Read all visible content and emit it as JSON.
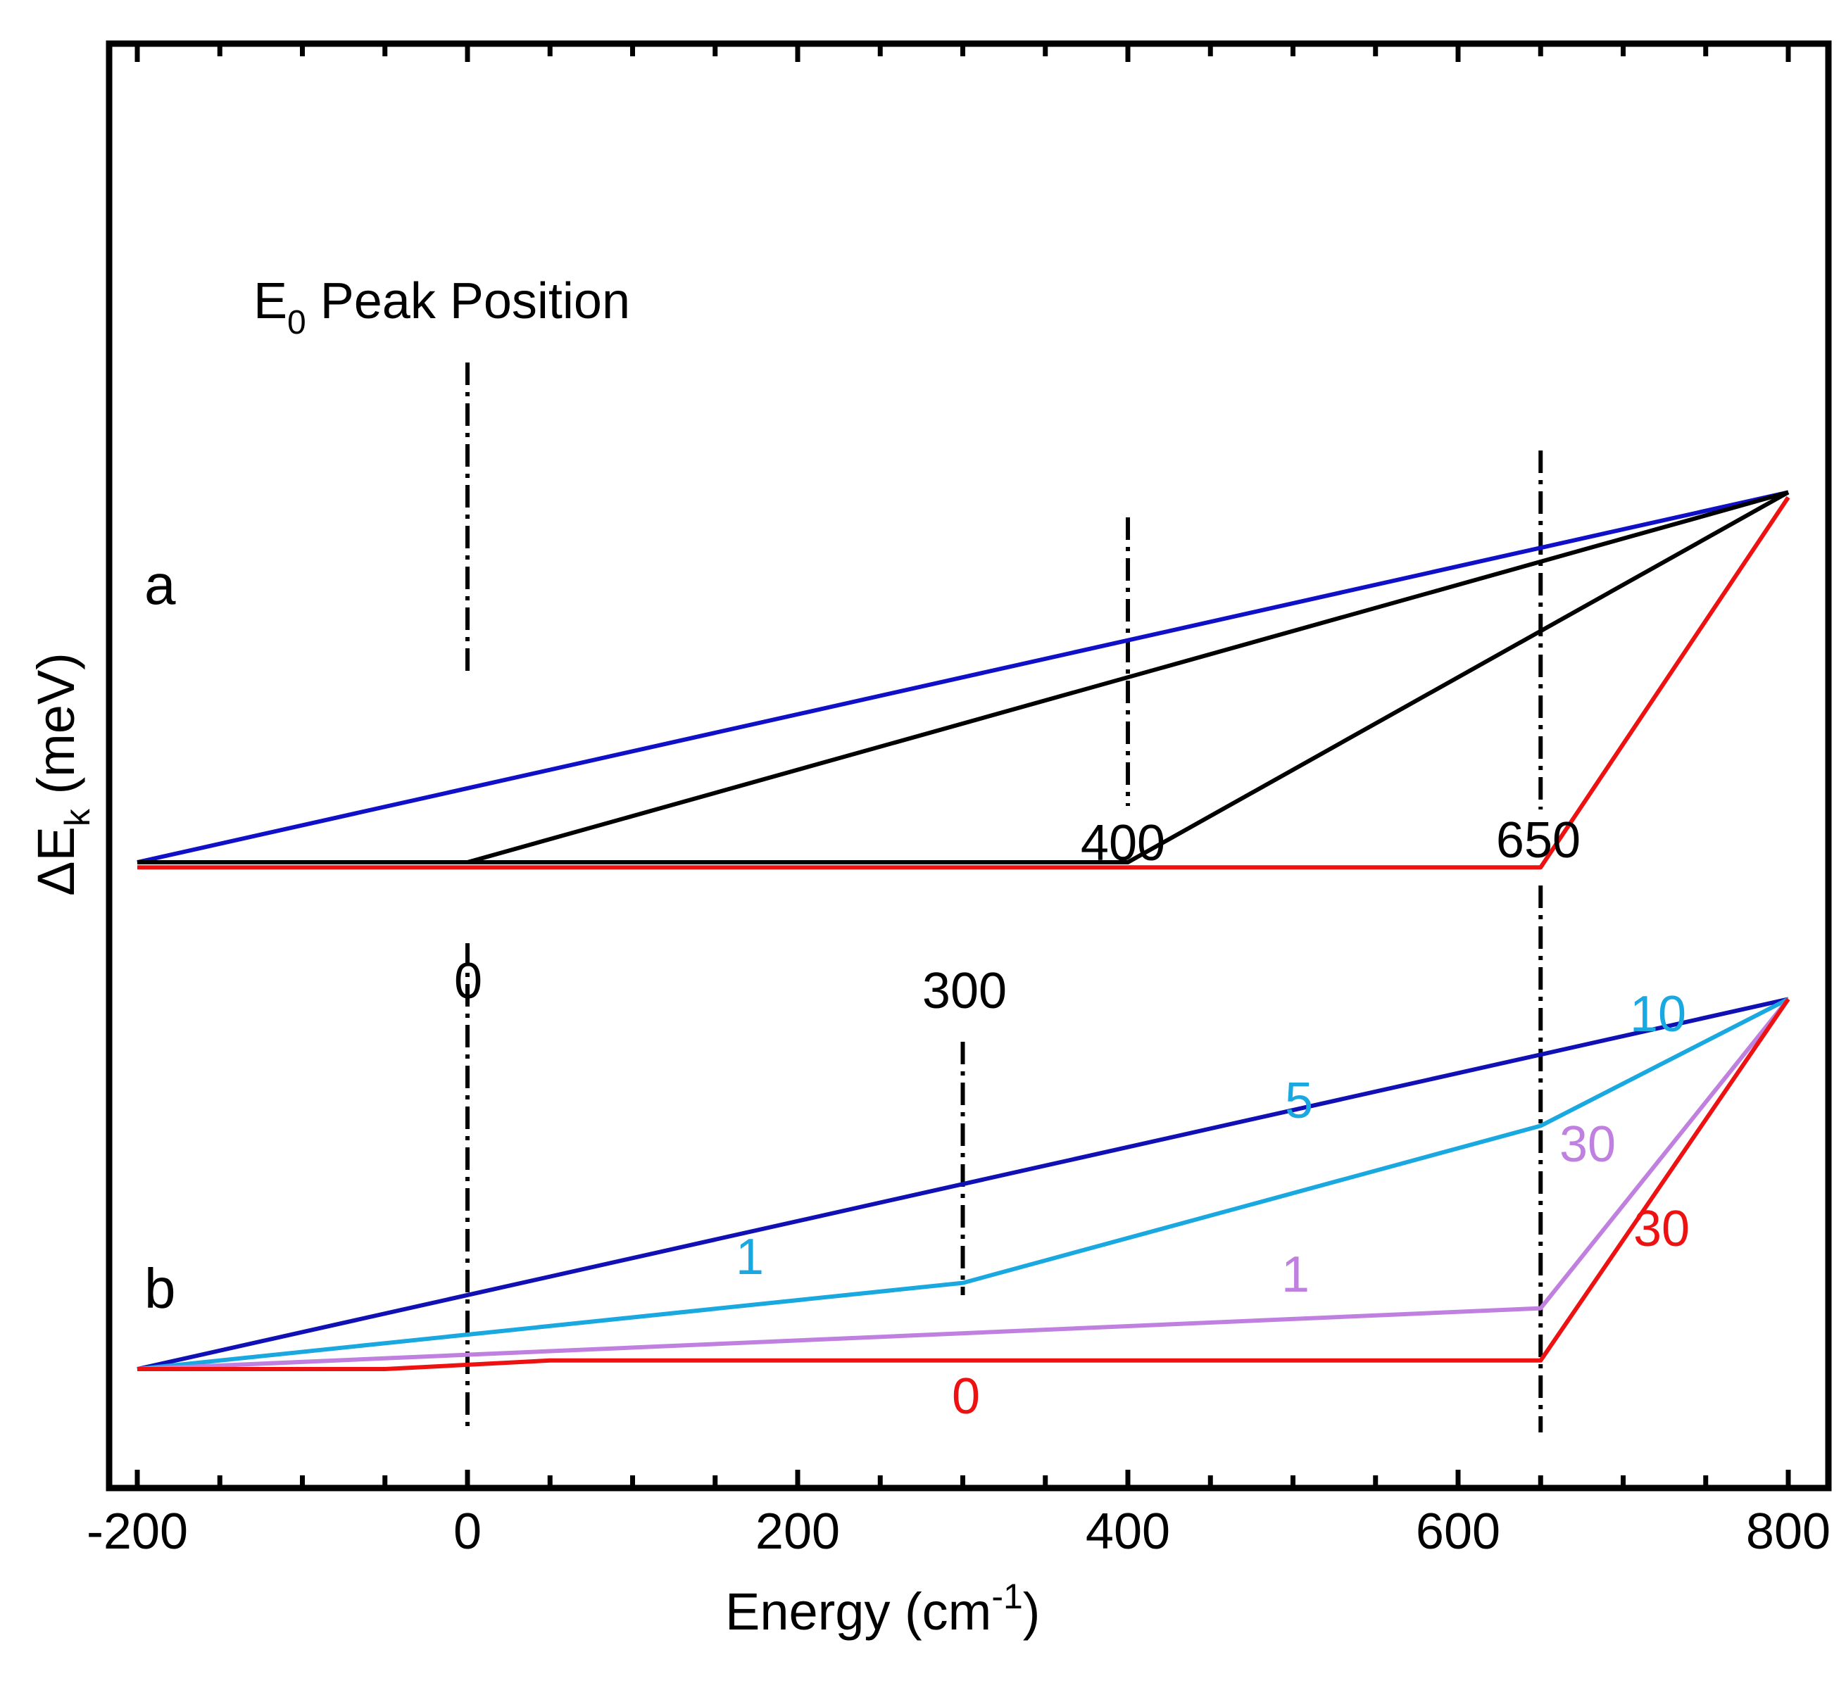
{
  "chart_data": {
    "type": "line",
    "title": "",
    "xlabel": "Energy (cm",
    "xlabel_sup": "-1",
    "xlabel_end": ")",
    "ylabel_prefix": "ΔE",
    "ylabel_sub": "k",
    "ylabel_unit": " (meV)",
    "xlim": [
      -200,
      800
    ],
    "ylim": [
      -0.15,
      1.55
    ],
    "xticks": [
      -200,
      0,
      200,
      400,
      600,
      800
    ],
    "xtick_labels": [
      "-200",
      "0",
      "200",
      "400",
      "600",
      "800"
    ],
    "grid": false,
    "panels": [
      {
        "label": "a",
        "series": [
          {
            "name": "a-blue",
            "color": "#1010c8",
            "x": [
              -200,
              800
            ],
            "y": [
              1.0,
              1.73
            ]
          },
          {
            "name": "a-black-0",
            "color": "#000000",
            "x": [
              -200,
              0,
              800
            ],
            "y": [
              1.0,
              1.0,
              1.73
            ]
          },
          {
            "name": "a-black-400",
            "color": "#000000",
            "x": [
              -200,
              400,
              800
            ],
            "y": [
              1.0,
              1.0,
              1.73
            ]
          },
          {
            "name": "a-red-650",
            "color": "#ee1111",
            "x": [
              -200,
              650,
              800
            ],
            "y": [
              0.99,
              0.99,
              1.72
            ]
          }
        ]
      },
      {
        "label": "b",
        "series": [
          {
            "name": "b-blue",
            "color": "#1010b4",
            "x": [
              -200,
              800
            ],
            "y": [
              0.0,
              0.73
            ]
          },
          {
            "name": "b-cyan",
            "color": "#1aa8e0",
            "x": [
              -200,
              300,
              650,
              800
            ],
            "y": [
              0.0,
              0.17,
              0.48,
              0.73
            ]
          },
          {
            "name": "b-violet",
            "color": "#c080e0",
            "x": [
              -200,
              650,
              800
            ],
            "y": [
              0.0,
              0.12,
              0.73
            ]
          },
          {
            "name": "b-red",
            "color": "#ee1111",
            "x": [
              -200,
              -50,
              50,
              650,
              800
            ],
            "y": [
              0.0,
              0.0,
              0.017,
              0.017,
              0.73
            ]
          }
        ]
      }
    ],
    "markers": [
      {
        "x": 0,
        "label": "0"
      },
      {
        "x": 300,
        "label": "300"
      },
      {
        "x": 400,
        "label": "400"
      },
      {
        "x": 650,
        "label": "650"
      }
    ],
    "annotations": [
      {
        "text": "E",
        "sub": "0",
        "rest": " Peak Position"
      },
      {
        "text": "1",
        "color": "#1aa8e0"
      },
      {
        "text": "5",
        "color": "#1aa8e0"
      },
      {
        "text": "10",
        "color": "#1aa8e0"
      },
      {
        "text": "1",
        "color": "#c080e0"
      },
      {
        "text": "30",
        "color": "#c080e0"
      },
      {
        "text": "30",
        "color": "#ee1111"
      },
      {
        "text": "0",
        "color": "#ee1111"
      }
    ]
  }
}
